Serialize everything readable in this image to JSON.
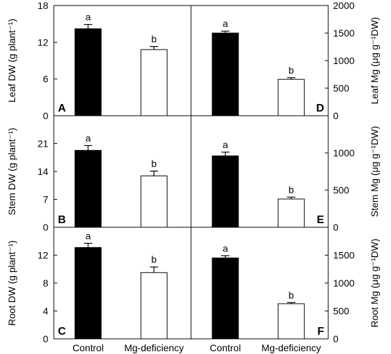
{
  "categories": [
    "Control",
    "Mg-deficiency"
  ],
  "colors": {
    "control": "#000000",
    "deficiency": "#ffffff",
    "axis": "#000000"
  },
  "chart_data": [
    {
      "panel": "A",
      "type": "bar",
      "ylabel": "Leaf DW  (g plant⁻¹)",
      "categories": [
        "Control",
        "Mg-deficiency"
      ],
      "values": [
        14.2,
        10.8
      ],
      "errors": [
        0.7,
        0.5
      ],
      "letters": [
        "a",
        "b"
      ],
      "ylim": [
        0,
        18
      ],
      "ticks": [
        0,
        6,
        12,
        18
      ],
      "axis_side": "left"
    },
    {
      "panel": "B",
      "type": "bar",
      "ylabel": "Stem DW  (g plant⁻¹)",
      "categories": [
        "Control",
        "Mg-deficiency"
      ],
      "values": [
        19.3,
        12.9
      ],
      "errors": [
        1.2,
        1.2
      ],
      "letters": [
        "a",
        "b"
      ],
      "ylim": [
        0,
        28
      ],
      "ticks": [
        0,
        7,
        14,
        21
      ],
      "axis_side": "left"
    },
    {
      "panel": "C",
      "type": "bar",
      "ylabel": "Root DW  (g plant⁻¹)",
      "categories": [
        "Control",
        "Mg-deficiency"
      ],
      "values": [
        13.1,
        9.5
      ],
      "errors": [
        0.6,
        0.8
      ],
      "letters": [
        "a",
        "b"
      ],
      "ylim": [
        0,
        16
      ],
      "ticks": [
        0,
        4,
        8,
        12
      ],
      "axis_side": "left"
    },
    {
      "panel": "D",
      "type": "bar",
      "ylabel": "Leaf Mg  (μg g⁻¹DW)",
      "categories": [
        "Control",
        "Mg-deficiency"
      ],
      "values": [
        1500,
        660
      ],
      "errors": [
        35,
        30
      ],
      "letters": [
        "a",
        "b"
      ],
      "ylim": [
        0,
        2000
      ],
      "ticks": [
        0,
        500,
        1000,
        1500,
        2000
      ],
      "axis_side": "right"
    },
    {
      "panel": "E",
      "type": "bar",
      "ylabel": "Stem Mg  (μg g⁻¹DW)",
      "categories": [
        "Control",
        "Mg-deficiency"
      ],
      "values": [
        960,
        380
      ],
      "errors": [
        50,
        25
      ],
      "letters": [
        "a",
        "b"
      ],
      "ylim": [
        0,
        1500
      ],
      "ticks": [
        0,
        500,
        1000
      ],
      "axis_side": "right"
    },
    {
      "panel": "F",
      "type": "bar",
      "ylabel": "Root Mg  (μg g⁻¹DW)",
      "categories": [
        "Control",
        "Mg-deficiency"
      ],
      "values": [
        1450,
        630
      ],
      "errors": [
        40,
        20
      ],
      "letters": [
        "a",
        "b"
      ],
      "ylim": [
        0,
        2000
      ],
      "ticks": [
        0,
        500,
        1000,
        1500
      ],
      "axis_side": "right"
    }
  ]
}
